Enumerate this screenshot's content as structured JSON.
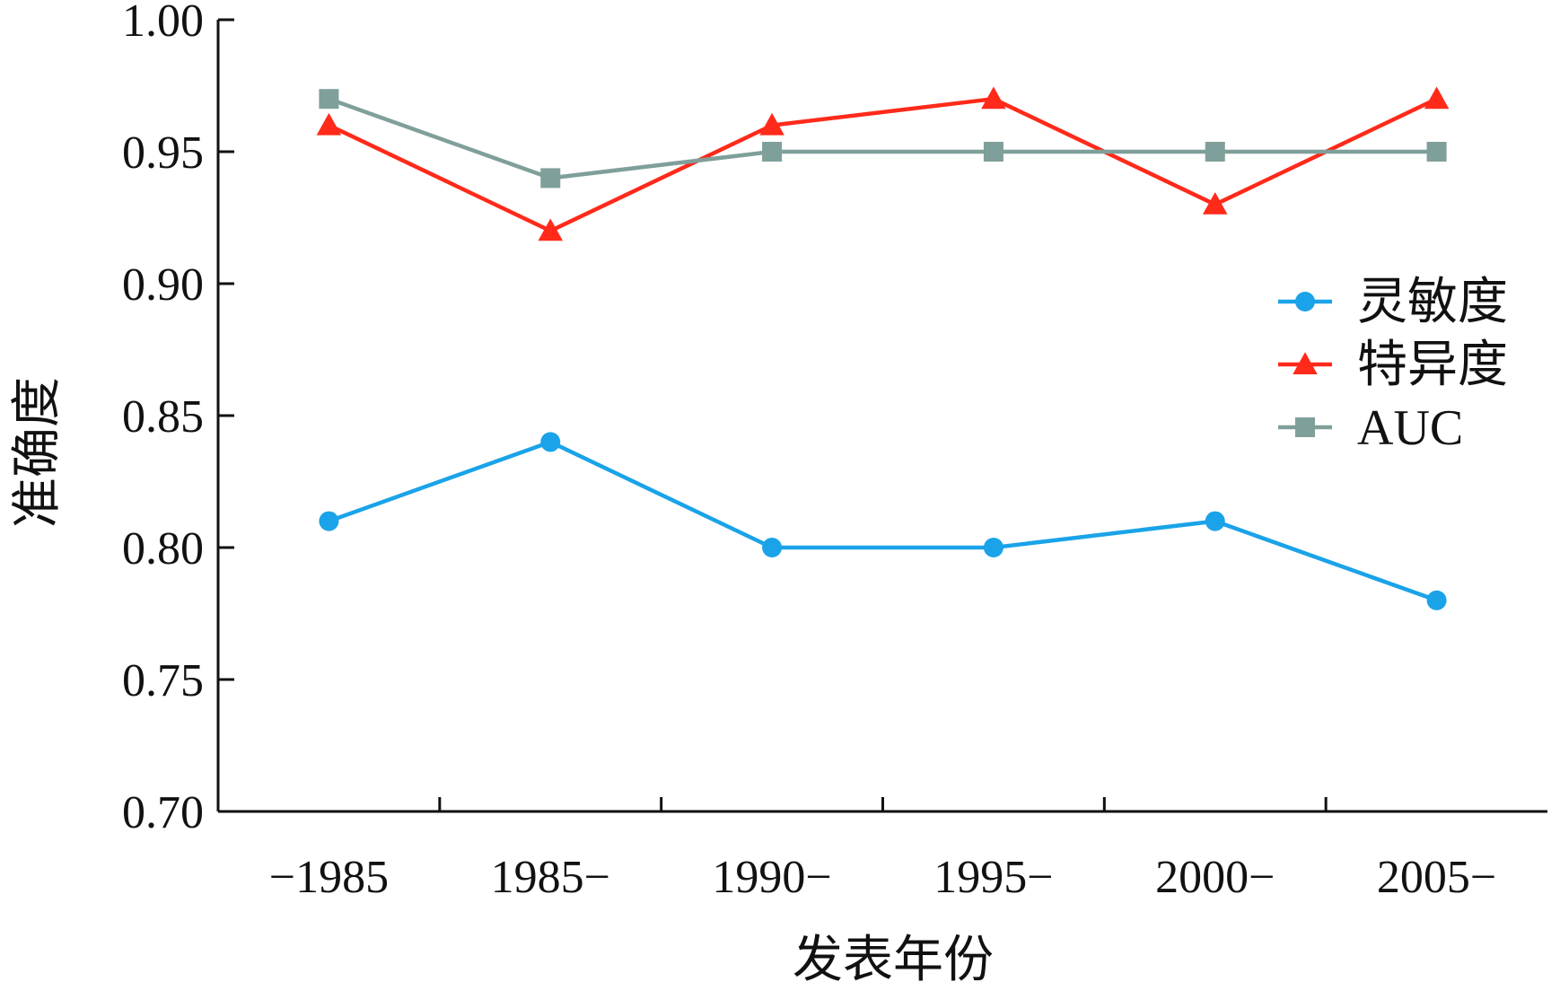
{
  "chart_data": {
    "type": "line",
    "xlabel": "发表年份",
    "ylabel": "准确度",
    "categories": [
      "−1985",
      "1985−",
      "1990−",
      "1995−",
      "2000−",
      "2005−"
    ],
    "ylim": [
      0.7,
      1.0
    ],
    "yticks": [
      "0.70",
      "0.75",
      "0.80",
      "0.85",
      "0.90",
      "0.95",
      "1.00"
    ],
    "grid": false,
    "legend_position": "right",
    "series": [
      {
        "name": "灵敏度",
        "values": [
          0.81,
          0.84,
          0.8,
          0.8,
          0.81,
          0.78
        ],
        "color": "#1aa3e8",
        "marker": "circle"
      },
      {
        "name": "特异度",
        "values": [
          0.96,
          0.92,
          0.96,
          0.97,
          0.93,
          0.97
        ],
        "color": "#ff2a1a",
        "marker": "triangle"
      },
      {
        "name": "AUC",
        "values": [
          0.97,
          0.94,
          0.95,
          0.95,
          0.95,
          0.95
        ],
        "color": "#7f9f9a",
        "marker": "square"
      }
    ]
  }
}
